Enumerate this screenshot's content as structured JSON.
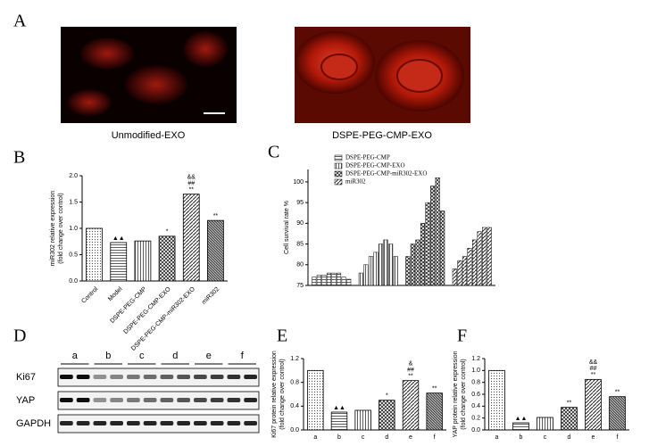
{
  "panel_labels": [
    "A",
    "B",
    "C",
    "D",
    "E",
    "F"
  ],
  "images": [
    {
      "caption": "Unmodified-EXO"
    },
    {
      "caption": "DSPE-PEG-CMP-EXO"
    }
  ],
  "blot": {
    "lanes": [
      "a",
      "b",
      "c",
      "d",
      "e",
      "f"
    ],
    "proteins": [
      "Ki67",
      "YAP",
      "GAPDH"
    ]
  },
  "chart_data": [
    {
      "type": "bar",
      "y_label": [
        "miR302 relative expression",
        "(fold change over control)"
      ],
      "categories": [
        "Control",
        "Model",
        "DSPE-PEG-CMP",
        "DSPE-PEG-CMP-EXO",
        "DSPE-PEG-CMP-miR302-EXO",
        "miR302"
      ],
      "values": [
        1.0,
        0.73,
        0.76,
        0.85,
        1.65,
        1.15
      ],
      "annotations": [
        [],
        [
          "▲▲"
        ],
        [],
        [
          "*"
        ],
        [
          "&&",
          "##",
          "**"
        ],
        [
          "**"
        ]
      ],
      "ylim": [
        0,
        2
      ],
      "yticks": [
        {
          "value": 0,
          "label": "0.0"
        },
        {
          "value": 0.5,
          "label": "0.5"
        },
        {
          "value": 1,
          "label": "1.0"
        },
        {
          "value": 1.5,
          "label": "1.5"
        },
        {
          "value": 2,
          "label": "2.0"
        }
      ]
    },
    {
      "type": "grouped",
      "y_label": [
        "Cell survival rate %"
      ],
      "categories": [
        null,
        null,
        null,
        null,
        null,
        null,
        null,
        null
      ],
      "series": [
        {
          "name": "DSPE-PEG-CMP",
          "values": [
            77,
            77.5,
            77.5,
            78,
            78,
            78,
            77,
            76.5
          ]
        },
        {
          "name": "DSPE-PEG-CMP-EXO",
          "values": [
            78,
            80,
            82,
            83,
            85,
            86,
            85,
            82
          ]
        },
        {
          "name": "DSPE-PEG-CMP-miR302-EXO",
          "values": [
            82,
            85,
            86,
            90,
            95,
            99,
            101,
            93
          ]
        },
        {
          "name": "miR302",
          "values": [
            79,
            81,
            82,
            84,
            86,
            88,
            89,
            89
          ]
        }
      ],
      "ylim": [
        75,
        103
      ],
      "yticks": [
        75,
        80,
        85,
        90,
        95,
        100
      ]
    },
    {
      "type": "bar",
      "y_label": [
        "Ki67 protein relative expression",
        "(fold change over control)"
      ],
      "categories": [
        "a",
        "b",
        "c",
        "d",
        "e",
        "f"
      ],
      "values": [
        1.0,
        0.3,
        0.33,
        0.5,
        0.83,
        0.62
      ],
      "annotations": [
        [],
        [
          "▲▲"
        ],
        [],
        [
          "*"
        ],
        [
          "&",
          "##",
          "**"
        ],
        [
          "**"
        ]
      ],
      "ylim": [
        0,
        1.2
      ],
      "yticks": [
        {
          "value": 0,
          "label": "0.0"
        },
        {
          "value": 0.4,
          "label": "0.4"
        },
        {
          "value": 0.8,
          "label": "0.8"
        },
        {
          "value": 1.2,
          "label": "1.2"
        }
      ]
    },
    {
      "type": "bar",
      "y_label": [
        "YAP protein relative expression",
        "(fold change over control)"
      ],
      "categories": [
        "a",
        "b",
        "c",
        "d",
        "e",
        "f"
      ],
      "values": [
        1.0,
        0.12,
        0.21,
        0.38,
        0.85,
        0.56
      ],
      "annotations": [
        [],
        [
          "▲▲"
        ],
        [],
        [
          "**"
        ],
        [
          "&&",
          "##",
          "**"
        ],
        [
          "**"
        ]
      ],
      "ylim": [
        0,
        1.2
      ],
      "yticks": [
        {
          "value": 0,
          "label": "0.0"
        },
        {
          "value": 0.2,
          "label": "0.2"
        },
        {
          "value": 0.4,
          "label": "0.4"
        },
        {
          "value": 0.6,
          "label": "0.6"
        },
        {
          "value": 0.8,
          "label": "0.8"
        },
        {
          "value": 1,
          "label": "1.0"
        },
        {
          "value": 1.2,
          "label": "1.2"
        }
      ]
    }
  ]
}
